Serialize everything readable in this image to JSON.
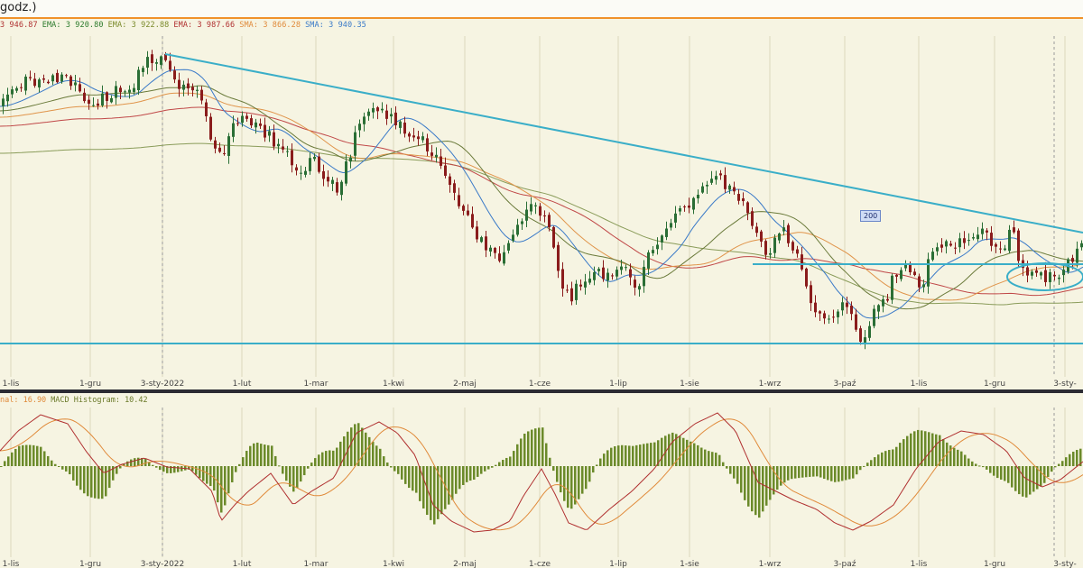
{
  "window": {
    "title": "godz.)"
  },
  "legend": [
    {
      "text": "3 946.87",
      "color": "#b03030"
    },
    {
      "text": "EMA: 3 920.80",
      "color": "#2b7a2b"
    },
    {
      "text": "EMA: 3 922.88",
      "color": "#7a8a2a"
    },
    {
      "text": "EMA: 3 987.66",
      "color": "#b03030"
    },
    {
      "text": "SMA: 3 866.28",
      "color": "#e08a3a"
    },
    {
      "text": "SMA: 3 940.35",
      "color": "#3a7ac8"
    }
  ],
  "macd_legend": [
    {
      "text": "nal: 16.90",
      "color": "#e08a3a"
    },
    {
      "text": "MACD Histogram: 10.42",
      "color": "#6b7a2a"
    }
  ],
  "badge": {
    "text": "200"
  },
  "colors": {
    "up": "#2a6e35",
    "down": "#8a1c1c",
    "trend": "#3aaec8",
    "hist": "#6b8a2a"
  },
  "chart_data": {
    "type": "line",
    "x_ticks": [
      "1-lis",
      "1-gru",
      "3-sty-2022",
      "1-lut",
      "1-mar",
      "1-kwi",
      "2-maj",
      "1-cze",
      "1-lip",
      "1-sie",
      "1-wrz",
      "3-paź",
      "1-lis",
      "1-gru",
      "3-sty-"
    ],
    "panels": [
      "price",
      "macd"
    ]
  }
}
